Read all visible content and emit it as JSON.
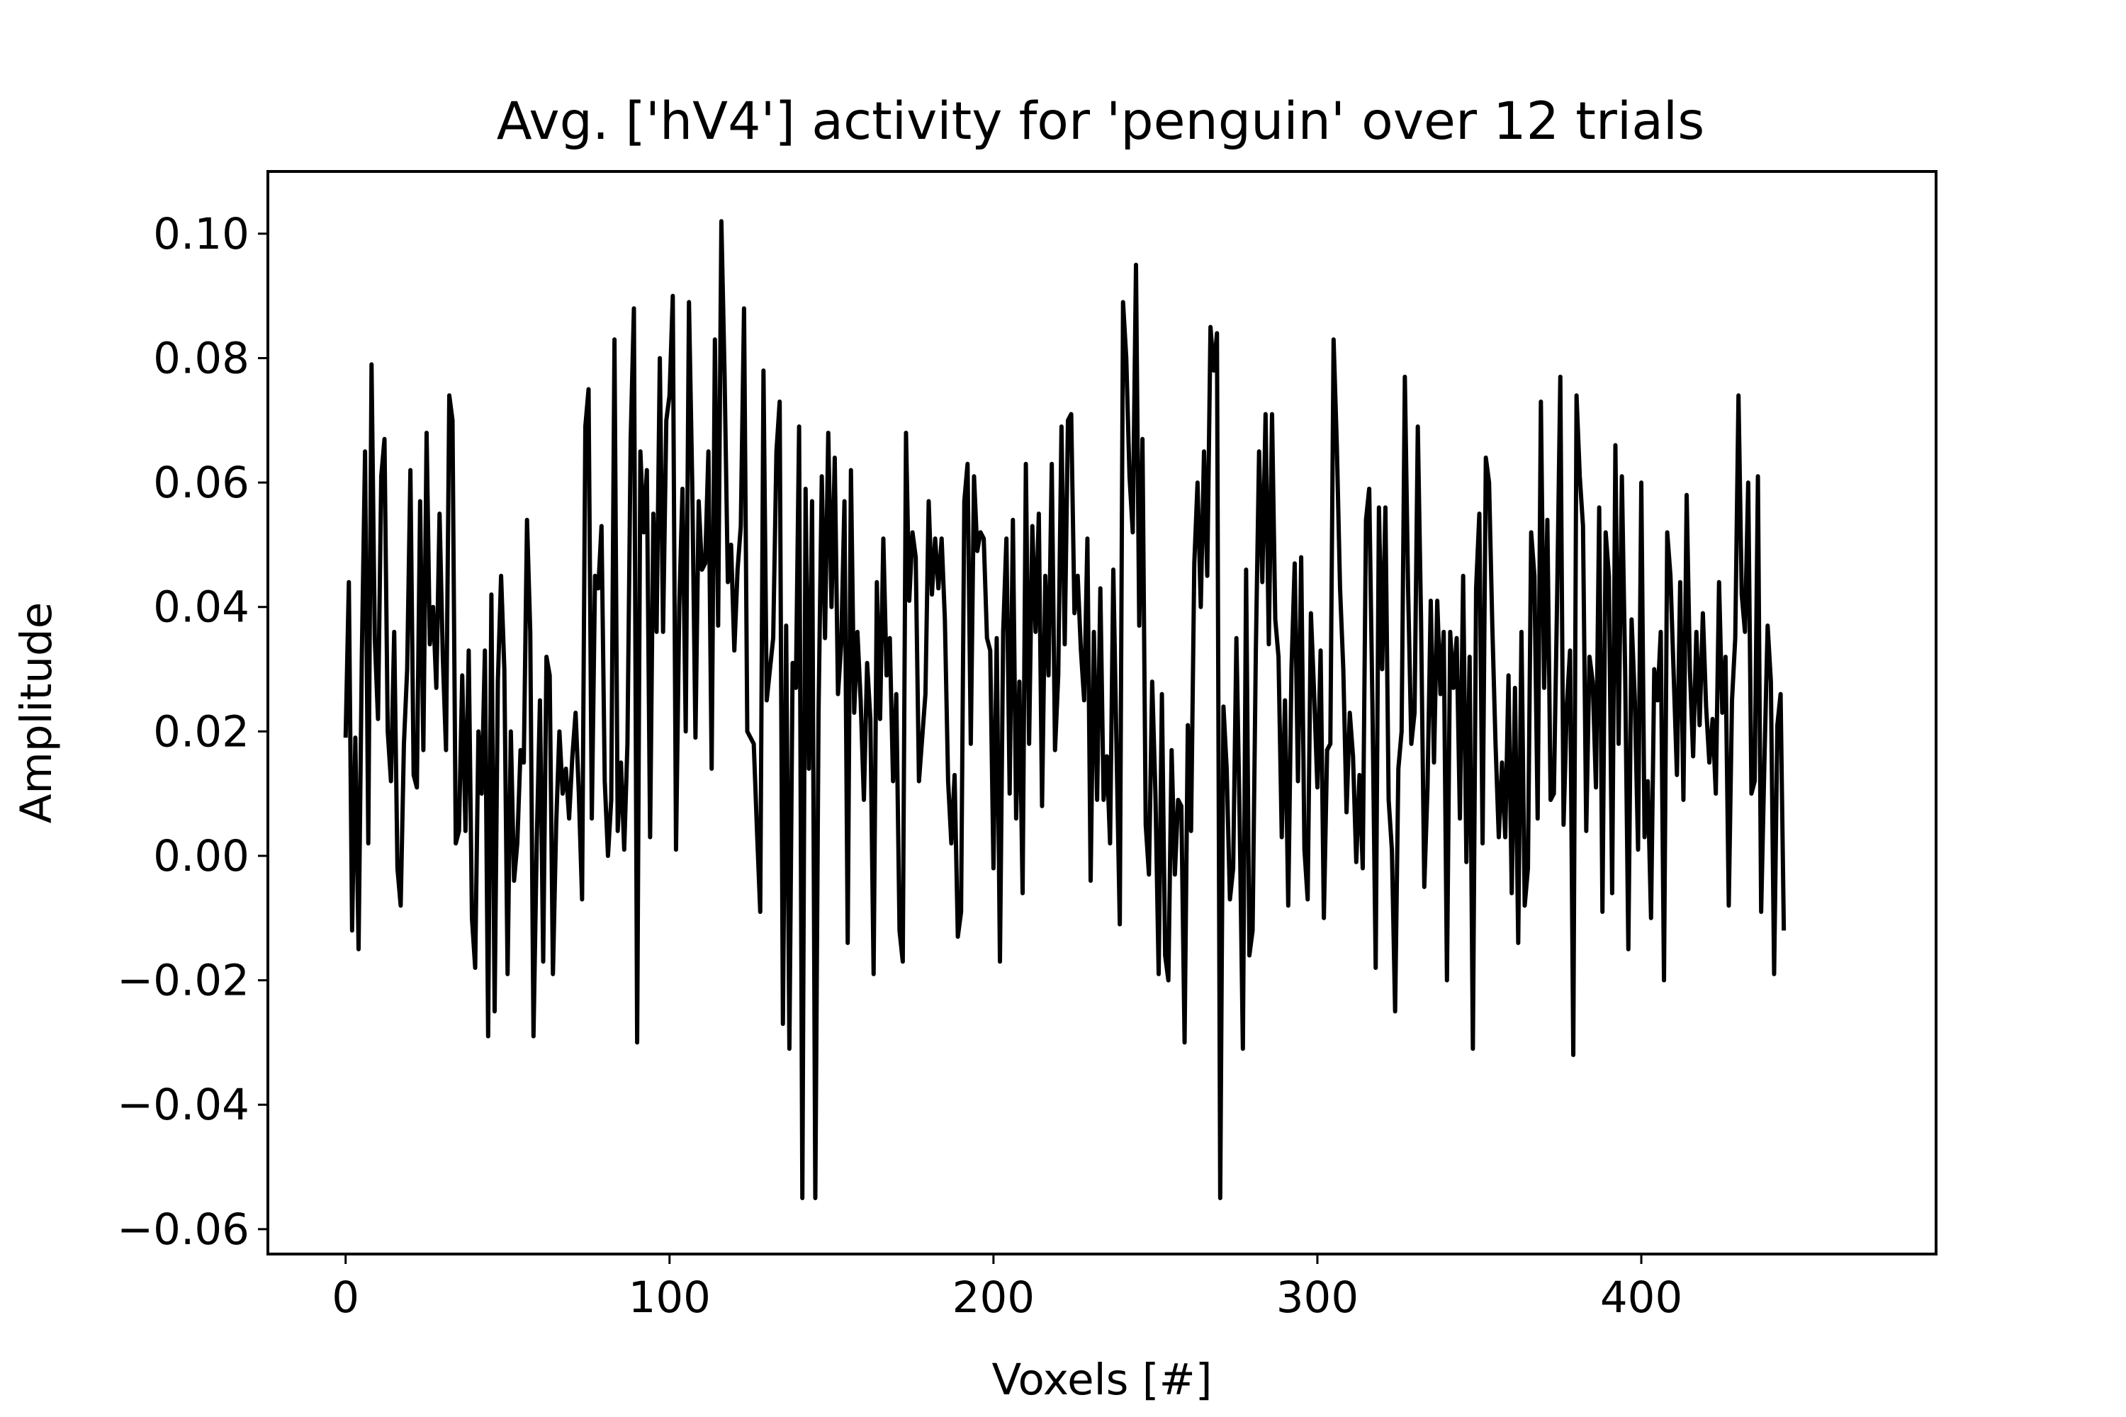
{
  "chart_data": {
    "type": "line",
    "title": "Avg. ['hV4'] activity for 'penguin' over 12 trials",
    "xlabel": "Voxels [#]",
    "ylabel": "Amplitude",
    "xlim": [
      -24,
      491
    ],
    "ylim": [
      -0.064,
      0.11
    ],
    "x_ticks": [
      0,
      100,
      200,
      300,
      400
    ],
    "x_tick_labels": [
      "0",
      "100",
      "200",
      "300",
      "400"
    ],
    "y_ticks": [
      -0.06,
      -0.04,
      -0.02,
      0.0,
      0.02,
      0.04,
      0.06,
      0.08,
      0.1
    ],
    "y_tick_labels": [
      "−0.06",
      "−0.04",
      "−0.02",
      "0.00",
      "0.02",
      "0.04",
      "0.06",
      "0.08",
      "0.10"
    ],
    "grid": false,
    "legend": "none",
    "series": [
      {
        "color": "#000000",
        "x_start": 0,
        "x_step": 1,
        "values": [
          0.019,
          0.044,
          -0.012,
          0.019,
          -0.015,
          0.032,
          0.065,
          0.002,
          0.079,
          0.035,
          0.022,
          0.061,
          0.067,
          0.02,
          0.012,
          0.036,
          -0.002,
          -0.008,
          0.018,
          0.03,
          0.062,
          0.013,
          0.011,
          0.057,
          0.017,
          0.068,
          0.034,
          0.04,
          0.027,
          0.055,
          0.032,
          0.017,
          0.074,
          0.07,
          0.002,
          0.004,
          0.029,
          0.004,
          0.033,
          -0.01,
          -0.018,
          0.02,
          0.01,
          0.033,
          -0.029,
          0.042,
          -0.025,
          0.028,
          0.045,
          0.03,
          -0.019,
          0.02,
          -0.004,
          0.002,
          0.017,
          0.015,
          0.054,
          0.036,
          -0.029,
          0.002,
          0.025,
          -0.017,
          0.032,
          0.029,
          -0.019,
          0.005,
          0.02,
          0.01,
          0.014,
          0.006,
          0.016,
          0.023,
          0.01,
          -0.007,
          0.069,
          0.075,
          0.006,
          0.045,
          0.043,
          0.053,
          0.012,
          0.0,
          0.009,
          0.083,
          0.004,
          0.015,
          0.001,
          0.018,
          0.067,
          0.088,
          -0.03,
          0.065,
          0.052,
          0.062,
          0.003,
          0.055,
          0.036,
          0.08,
          0.036,
          0.07,
          0.074,
          0.09,
          0.001,
          0.04,
          0.059,
          0.02,
          0.089,
          0.06,
          0.019,
          0.057,
          0.046,
          0.047,
          0.065,
          0.014,
          0.083,
          0.037,
          0.102,
          0.077,
          0.044,
          0.05,
          0.033,
          0.046,
          0.053,
          0.088,
          0.02,
          0.019,
          0.018,
          0.004,
          -0.009,
          0.078,
          0.025,
          0.03,
          0.035,
          0.065,
          0.073,
          -0.027,
          0.037,
          -0.031,
          0.031,
          0.027,
          0.069,
          -0.055,
          0.059,
          0.014,
          0.057,
          -0.055,
          0.023,
          0.061,
          0.035,
          0.068,
          0.04,
          0.064,
          0.026,
          0.034,
          0.057,
          -0.014,
          0.062,
          0.023,
          0.036,
          0.025,
          0.009,
          0.031,
          0.022,
          -0.019,
          0.044,
          0.022,
          0.051,
          0.029,
          0.035,
          0.012,
          0.026,
          -0.012,
          -0.017,
          0.068,
          0.041,
          0.052,
          0.048,
          0.012,
          0.019,
          0.026,
          0.057,
          0.042,
          0.051,
          0.043,
          0.051,
          0.038,
          0.012,
          0.002,
          0.013,
          -0.013,
          -0.009,
          0.057,
          0.063,
          0.018,
          0.061,
          0.049,
          0.052,
          0.051,
          0.035,
          0.033,
          -0.002,
          0.035,
          -0.017,
          0.036,
          0.051,
          0.01,
          0.054,
          0.006,
          0.028,
          -0.006,
          0.063,
          0.018,
          0.053,
          0.036,
          0.055,
          0.008,
          0.045,
          0.029,
          0.063,
          0.017,
          0.029,
          0.069,
          0.034,
          0.07,
          0.071,
          0.039,
          0.045,
          0.033,
          0.025,
          0.051,
          -0.004,
          0.036,
          0.009,
          0.043,
          0.009,
          0.016,
          0.002,
          0.046,
          0.017,
          -0.011,
          0.089,
          0.08,
          0.061,
          0.052,
          0.095,
          0.037,
          0.067,
          0.005,
          -0.003,
          0.028,
          0.01,
          -0.019,
          0.026,
          -0.016,
          -0.02,
          0.017,
          -0.003,
          0.009,
          0.008,
          -0.03,
          0.021,
          0.004,
          0.047,
          0.06,
          0.04,
          0.065,
          0.045,
          0.085,
          0.078,
          0.084,
          -0.055,
          0.024,
          0.014,
          -0.007,
          -0.002,
          0.035,
          0.006,
          -0.031,
          0.046,
          -0.016,
          -0.012,
          0.033,
          0.065,
          0.044,
          0.071,
          0.034,
          0.071,
          0.038,
          0.032,
          0.003,
          0.025,
          -0.008,
          0.03,
          0.047,
          0.012,
          0.048,
          0.001,
          -0.007,
          0.039,
          0.026,
          0.011,
          0.033,
          -0.01,
          0.017,
          0.018,
          0.083,
          0.066,
          0.043,
          0.03,
          0.007,
          0.023,
          0.016,
          -0.001,
          0.013,
          -0.002,
          0.054,
          0.059,
          0.024,
          -0.018,
          0.056,
          0.03,
          0.056,
          0.009,
          0.001,
          -0.025,
          0.014,
          0.02,
          0.077,
          0.043,
          0.018,
          0.023,
          0.069,
          0.038,
          -0.005,
          0.011,
          0.041,
          0.015,
          0.041,
          0.026,
          0.036,
          -0.02,
          0.036,
          0.027,
          0.035,
          0.006,
          0.045,
          -0.001,
          0.032,
          -0.031,
          0.043,
          0.055,
          0.002,
          0.064,
          0.06,
          0.037,
          0.018,
          0.003,
          0.015,
          0.003,
          0.029,
          -0.006,
          0.027,
          -0.014,
          0.036,
          -0.008,
          -0.002,
          0.052,
          0.045,
          0.006,
          0.073,
          0.027,
          0.054,
          0.009,
          0.01,
          0.041,
          0.077,
          0.005,
          0.024,
          0.033,
          -0.032,
          0.074,
          0.061,
          0.053,
          0.004,
          0.032,
          0.028,
          0.011,
          0.056,
          -0.009,
          0.052,
          0.045,
          -0.006,
          0.066,
          0.018,
          0.061,
          0.03,
          -0.015,
          0.038,
          0.025,
          0.001,
          0.06,
          0.003,
          0.012,
          -0.01,
          0.03,
          0.025,
          0.036,
          -0.02,
          0.052,
          0.045,
          0.029,
          0.013,
          0.044,
          0.009,
          0.058,
          0.03,
          0.016,
          0.036,
          0.021,
          0.039,
          0.024,
          0.015,
          0.022,
          0.01,
          0.044,
          0.023,
          0.032,
          -0.008,
          0.025,
          0.035,
          0.074,
          0.042,
          0.036,
          0.06,
          0.01,
          0.012,
          0.061,
          -0.009,
          0.015,
          0.037,
          0.028,
          -0.019,
          0.021,
          0.026,
          -0.012
        ]
      }
    ]
  }
}
